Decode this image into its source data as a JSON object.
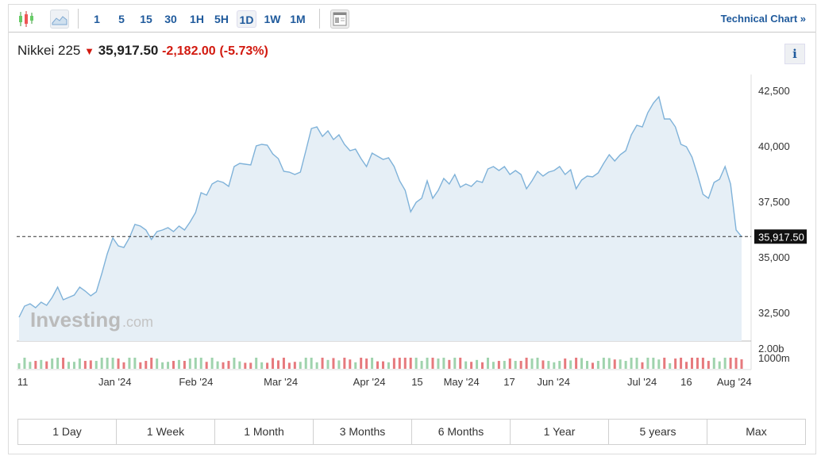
{
  "toolbar": {
    "candles_icon": "candlestick-icon",
    "area_icon": "area-chart-icon",
    "intervals": [
      "1",
      "5",
      "15",
      "30",
      "1H",
      "5H",
      "1D",
      "1W",
      "1M"
    ],
    "active_interval": "1D",
    "layout_icon": "layout-icon",
    "technical_chart": "Technical Chart »"
  },
  "quote": {
    "name": "Nikkei 225",
    "direction_icon": "arrow-down-icon",
    "last": "35,917.50",
    "change": "-2,182.00",
    "change_pct": "(-5.73%)",
    "info": "i"
  },
  "colors": {
    "line": "#7fb2d9",
    "fill": "#e6eff6",
    "down": "#d2190f",
    "vol_up": "#9fd3ad",
    "vol_down": "#e6797d"
  },
  "watermark": {
    "brand": "Investing",
    "suffix": ".com"
  },
  "chart_data": {
    "type": "area",
    "y_ticks": [
      "42,500",
      "40,000",
      "37,500",
      "35,000",
      "32,500"
    ],
    "y_tick_values": [
      42500,
      40000,
      37500,
      35000,
      32500
    ],
    "ylim": [
      32200,
      43000
    ],
    "last_label": "35,917.50",
    "last_value": 35917.5,
    "volume_ticks": [
      "2.00b",
      "1000m"
    ],
    "x_ticks": [
      "11",
      "Jan '24",
      "Feb '24",
      "Mar '24",
      "Apr '24",
      "15",
      "May '24",
      "17",
      "Jun '24",
      "Jul '24",
      "16",
      "Aug '24"
    ],
    "x_tick_index": [
      1,
      26,
      48,
      71,
      95,
      108,
      120,
      133,
      145,
      169,
      181,
      194
    ],
    "grid": false,
    "values": [
      32286,
      32786,
      32893,
      32714,
      32964,
      32821,
      33179,
      33643,
      33071,
      33179,
      33286,
      33643,
      33464,
      33250,
      33429,
      34250,
      35143,
      35857,
      35500,
      35429,
      35857,
      36464,
      36393,
      36214,
      35786,
      36143,
      36214,
      36321,
      36143,
      36393,
      36214,
      36571,
      37000,
      37893,
      37786,
      38286,
      38429,
      38357,
      38179,
      39071,
      39214,
      39179,
      39143,
      40000,
      40071,
      40036,
      39643,
      39429,
      38857,
      38821,
      38714,
      38821,
      39786,
      40786,
      40857,
      40429,
      40679,
      40286,
      40500,
      40071,
      39786,
      39857,
      39429,
      39071,
      39679,
      39536,
      39393,
      39464,
      39071,
      38429,
      38000,
      37036,
      37464,
      37643,
      38429,
      37643,
      38000,
      38536,
      38286,
      38714,
      38143,
      38286,
      38179,
      38429,
      38357,
      38964,
      39071,
      38893,
      39071,
      38714,
      38893,
      38714,
      38071,
      38429,
      38857,
      38643,
      38821,
      38893,
      39071,
      38714,
      38929,
      38071,
      38464,
      38643,
      38607,
      38786,
      39214,
      39607,
      39321,
      39607,
      39786,
      40500,
      40929,
      40857,
      41500,
      41929,
      42214,
      41214,
      41214,
      40857,
      40071,
      39964,
      39500,
      38714,
      37821,
      37643,
      38357,
      38500,
      39071,
      38286,
      36214,
      35917
    ]
  },
  "ranges": [
    "1 Day",
    "1 Week",
    "1 Month",
    "3 Months",
    "6 Months",
    "1 Year",
    "5 years",
    "Max"
  ]
}
